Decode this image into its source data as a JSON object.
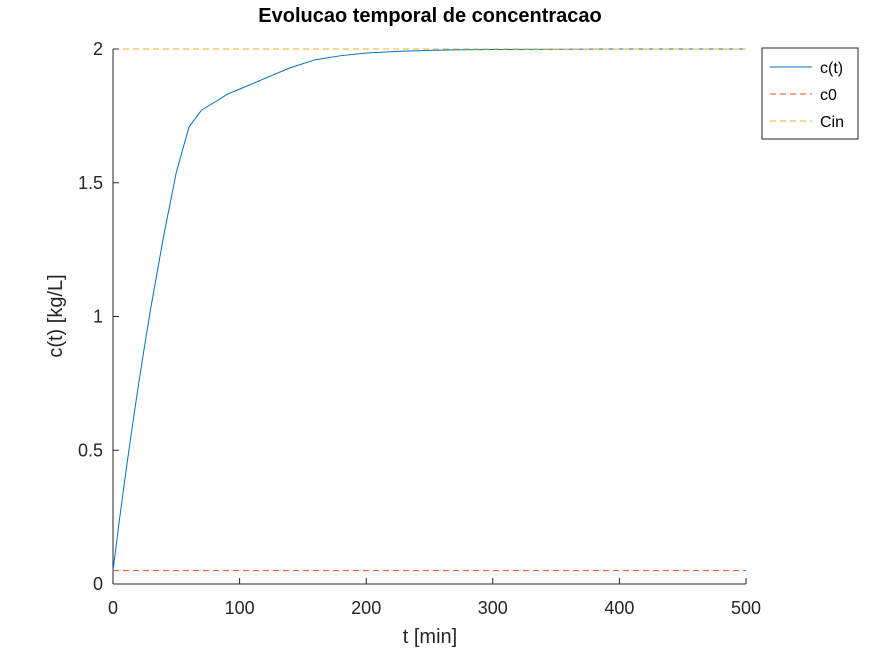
{
  "chart_data": {
    "type": "line",
    "title": "Evolucao temporal de concentracao",
    "xlabel": "t [min]",
    "ylabel": "c(t) [kg/L]",
    "xlim": [
      0,
      500
    ],
    "ylim": [
      0,
      2
    ],
    "xticks": [
      0,
      100,
      200,
      300,
      400,
      500
    ],
    "yticks": [
      0,
      0.5,
      1,
      1.5,
      2
    ],
    "xtick_labels": [
      "0",
      "100",
      "200",
      "300",
      "400",
      "500"
    ],
    "ytick_labels": [
      "0",
      "0.5",
      "1",
      "1.5",
      "2"
    ],
    "grid": false,
    "legend_position": "top-right outside",
    "series": [
      {
        "name": "c(t)",
        "style": "solid",
        "color": "#0072bd",
        "x": [
          0,
          5,
          10,
          15,
          20,
          25,
          30,
          40,
          50,
          60,
          70,
          80,
          90,
          100,
          120,
          140,
          160,
          180,
          200,
          225,
          250,
          275,
          300,
          350,
          400,
          450,
          500
        ],
        "y": [
          0.05,
          0.237,
          0.414,
          0.581,
          0.741,
          0.892,
          1.036,
          1.301,
          1.539,
          1.708,
          1.772,
          1.8,
          1.83,
          1.85,
          1.89,
          1.93,
          1.96,
          1.975,
          1.985,
          1.991,
          1.995,
          1.997,
          1.998,
          1.999,
          2.0,
          2.0,
          2.0
        ]
      },
      {
        "name": "c0",
        "style": "dashed",
        "color": "#d95319",
        "x": [
          0,
          500
        ],
        "y": [
          0.05,
          0.05
        ]
      },
      {
        "name": "Cin",
        "style": "dashed",
        "color": "#edb120",
        "x": [
          0,
          500
        ],
        "y": [
          2,
          2
        ]
      }
    ]
  }
}
